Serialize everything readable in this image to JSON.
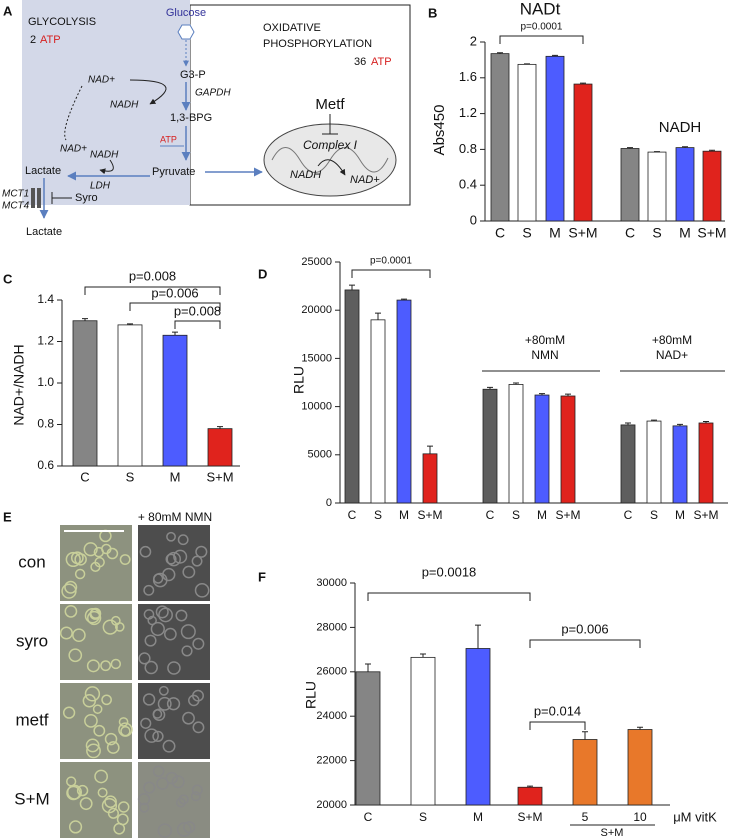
{
  "panel_labels": [
    "A",
    "B",
    "C",
    "D",
    "E",
    "F"
  ],
  "diagram": {
    "glycolysis": "GLYCOLYSIS",
    "glyco_atp_count": "2",
    "glyco_atp": "ATP",
    "glucose": "Glucose",
    "oxphos": [
      "OXIDATIVE",
      "PHOSPHORYLATION"
    ],
    "oxphos_atp_count": "36",
    "oxphos_atp": "ATP",
    "nad_top": "NAD+",
    "g3p": "G3-P",
    "nadh_top": "NADH",
    "gapdh": "GAPDH",
    "bpg": "1,3-BPG",
    "atp_mid": "ATP",
    "nad_low": "NAD+",
    "nadh_low": "NADH",
    "lactate_in": "Lactate",
    "pyruvate": "Pyruvate",
    "ldh": "LDH",
    "mct1": "MCT1",
    "mct4": "MCT4",
    "syro": "Syro",
    "lactate_out": "Lactate",
    "metf": "Metf",
    "complex1": "Complex I",
    "mito_nadh": "NADH",
    "mito_nad": "NAD+"
  },
  "micrographs": {
    "column_label": "+ 80mM NMN",
    "rows": [
      "con",
      "syro",
      "metf",
      "S+M"
    ]
  },
  "chart_data": [
    {
      "type": "bar",
      "y_label": "Abs450",
      "categories": [
        "C",
        "S",
        "M",
        "S+M",
        "C",
        "S",
        "M",
        "S+M"
      ],
      "values": [
        1.87,
        1.75,
        1.84,
        1.53,
        0.81,
        0.77,
        0.82,
        0.78
      ],
      "errors": [
        0.01,
        0.005,
        0.01,
        0.01,
        0.01,
        0.005,
        0.01,
        0.01
      ],
      "colors": [
        "#858585",
        "#ffffff",
        "#4d5cff",
        "#e0231d",
        "#858585",
        "#ffffff",
        "#4d5cff",
        "#e0231d"
      ],
      "ylim": [
        0,
        2
      ],
      "yticks": [
        0,
        0.4,
        0.8,
        1.2,
        1.6,
        2
      ],
      "group_labels": [
        [
          "NADt"
        ],
        [
          "NADH"
        ]
      ],
      "annotations": [
        "p=0.0001"
      ]
    },
    {
      "type": "bar",
      "y_label": "NAD+/NADH",
      "categories": [
        "C",
        "S",
        "M",
        "S+M"
      ],
      "values": [
        1.3,
        1.28,
        1.23,
        0.78
      ],
      "errors": [
        0.01,
        0.005,
        0.015,
        0.01
      ],
      "colors": [
        "#858585",
        "#ffffff",
        "#4d5cff",
        "#e0231d"
      ],
      "ylim": [
        0.6,
        1.4
      ],
      "yticks": [
        0.6,
        0.8,
        {
          "value": 1,
          "label": "1.0"
        },
        1.2,
        1.4
      ],
      "annotations": [
        "p=0.008",
        "p=0.006",
        "p=0.008"
      ]
    },
    {
      "type": "bar",
      "y_label": "RLU",
      "categories": [
        "C",
        "S",
        "M",
        "S+M",
        "C",
        "S",
        "M",
        "S+M",
        "C",
        "S",
        "M",
        "S+M"
      ],
      "values": [
        22100,
        19000,
        21050,
        5100,
        11800,
        12300,
        11200,
        11100,
        8100,
        8500,
        8000,
        8300
      ],
      "errors": [
        500,
        700,
        100,
        800,
        200,
        150,
        150,
        200,
        200,
        100,
        150,
        150
      ],
      "colors": [
        "#5e5e5e",
        "#ffffff",
        "#4d5cff",
        "#e0231d",
        "#5e5e5e",
        "#ffffff",
        "#4d5cff",
        "#e0231d",
        "#5e5e5e",
        "#ffffff",
        "#4d5cff",
        "#e0231d"
      ],
      "ylim": [
        0,
        25000
      ],
      "yticks": [
        0,
        5000,
        10000,
        15000,
        20000,
        25000
      ],
      "group_labels": [
        [
          "+80mM",
          "NMN"
        ],
        [
          "+80mM",
          "NAD+"
        ]
      ],
      "annotations": [
        "p=0.0001"
      ]
    },
    {
      "type": "bar",
      "y_label": "RLU",
      "categories": [
        "C",
        "S",
        "M",
        "S+M",
        "5",
        "10"
      ],
      "values": [
        26000,
        26650,
        27050,
        20800,
        22950,
        23400
      ],
      "errors": [
        350,
        150,
        1050,
        50,
        350,
        100
      ],
      "colors": [
        "#858585",
        "#ffffff",
        "#4d5cff",
        "#e0231d",
        "#e8782a",
        "#e8782a"
      ],
      "ylim": [
        20000,
        30000
      ],
      "yticks": [
        20000,
        22000,
        24000,
        26000,
        28000,
        30000
      ],
      "x_unit": "μM vitK",
      "x_group_label": "S+M",
      "annotations": [
        "p=0.0018",
        "p=0.014",
        "p=0.006"
      ]
    }
  ]
}
